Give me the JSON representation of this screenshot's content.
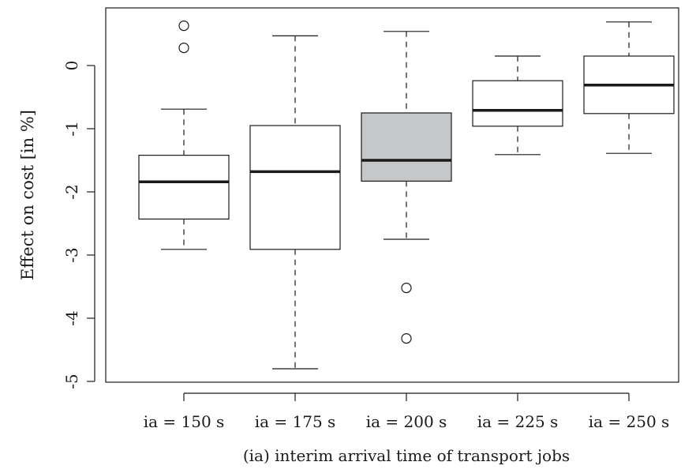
{
  "chart_data": {
    "type": "box",
    "title": "",
    "xlabel": "(ia) interim arrival time of transport jobs",
    "ylabel": "Effect on cost [in %]",
    "ylim": [
      -5,
      0.6
    ],
    "yticks": [
      -5,
      -4,
      -3,
      -2,
      -1,
      0
    ],
    "ytick_labels": [
      "-5",
      "-4",
      "-3",
      "-2",
      "-1",
      "0"
    ],
    "categories": [
      "ia = 150 s",
      "ia = 175 s",
      "ia = 200 s",
      "ia = 225 s",
      "ia = 250 s"
    ],
    "boxes": [
      {
        "whisker_low": -2.91,
        "q1": -2.43,
        "median": -1.84,
        "q3": -1.42,
        "whisker_high": -0.69,
        "outliers": [
          0.63,
          0.28
        ],
        "fill": "#ffffff"
      },
      {
        "whisker_low": -4.8,
        "q1": -2.91,
        "median": -1.68,
        "q3": -0.95,
        "whisker_high": 0.47,
        "outliers": [],
        "fill": "#ffffff"
      },
      {
        "whisker_low": -2.75,
        "q1": -1.83,
        "median": -1.5,
        "q3": -0.75,
        "whisker_high": 0.54,
        "outliers": [
          -3.52,
          -4.32
        ],
        "fill": "#c6c7c9"
      },
      {
        "whisker_low": -1.41,
        "q1": -0.96,
        "median": -0.71,
        "q3": -0.24,
        "whisker_high": 0.15,
        "outliers": [],
        "fill": "#ffffff"
      },
      {
        "whisker_low": -1.39,
        "q1": -0.76,
        "median": -0.31,
        "q3": 0.15,
        "whisker_high": 0.69,
        "outliers": [],
        "fill": "#ffffff"
      }
    ],
    "grid": false,
    "legend": "none"
  }
}
